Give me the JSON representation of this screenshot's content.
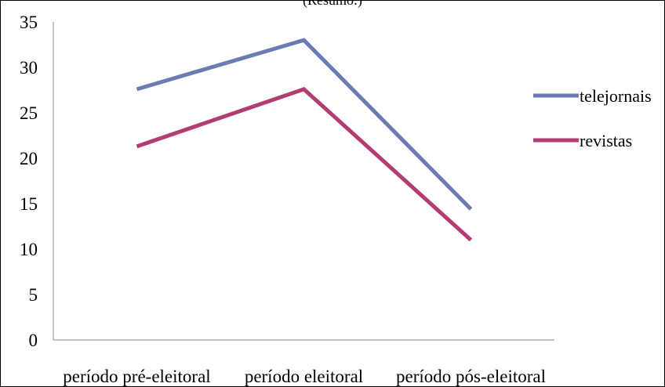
{
  "chart_data": {
    "type": "line",
    "title": "(Resumo:)",
    "categories": [
      "período pré-eleitoral",
      "período eleitoral",
      "período pós-eleitoral"
    ],
    "series": [
      {
        "name": "telejornais",
        "values": [
          27.6,
          33.0,
          14.4
        ],
        "color": "#6a7cb3"
      },
      {
        "name": "revistas",
        "values": [
          21.3,
          27.6,
          11.0
        ],
        "color": "#b33d72"
      }
    ],
    "ylim": [
      0,
      35
    ],
    "yticks": [
      "0",
      "5",
      "10",
      "15",
      "20",
      "25",
      "30",
      "35"
    ],
    "legend_position": "right",
    "grid": false
  }
}
